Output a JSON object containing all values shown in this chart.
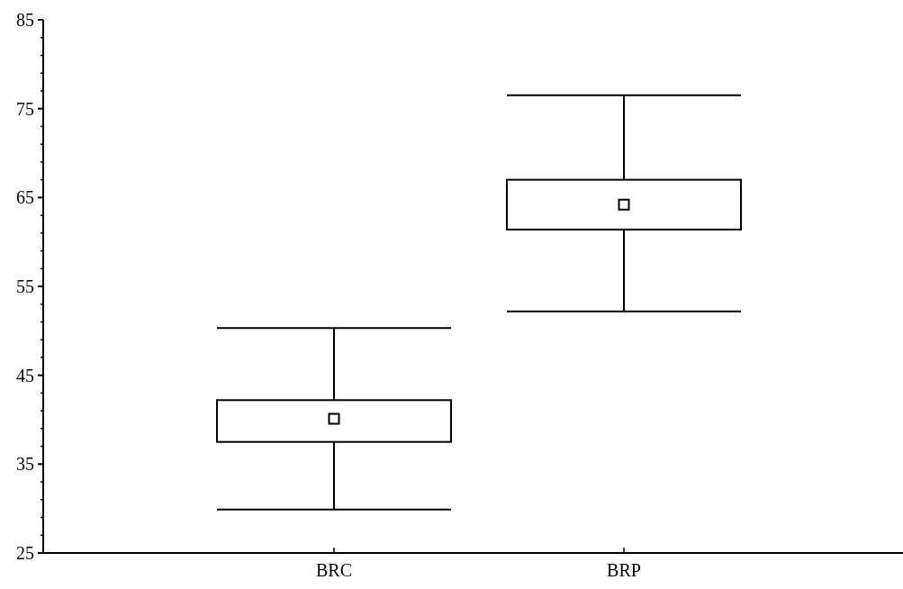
{
  "chart_data": {
    "type": "box",
    "categories": [
      "BRC",
      "BRP"
    ],
    "boxes": [
      {
        "low": 29.9,
        "q1": 37.5,
        "median": 40.1,
        "q3": 42.2,
        "high": 50.3
      },
      {
        "low": 52.2,
        "q1": 61.4,
        "median": 64.2,
        "q3": 67.0,
        "high": 76.5
      }
    ],
    "color": "#000000",
    "ylim": [
      25,
      85
    ],
    "yticks": [
      25,
      {
        "value": 27,
        "label": null
      },
      {
        "value": 29,
        "label": null
      },
      {
        "value": 31,
        "label": null
      },
      {
        "value": 33,
        "label": null
      },
      35,
      {
        "value": 37,
        "label": null
      },
      {
        "value": 39,
        "label": null
      },
      {
        "value": 41,
        "label": null
      },
      {
        "value": 43,
        "label": null
      },
      45,
      {
        "value": 47,
        "label": null
      },
      {
        "value": 49,
        "label": null
      },
      {
        "value": 51,
        "label": null
      },
      {
        "value": 53,
        "label": null
      },
      55,
      {
        "value": 57,
        "label": null
      },
      {
        "value": 59,
        "label": null
      },
      {
        "value": 61,
        "label": null
      },
      {
        "value": 63,
        "label": null
      },
      65,
      {
        "value": 67,
        "label": null
      },
      {
        "value": 69,
        "label": null
      },
      {
        "value": 71,
        "label": null
      },
      {
        "value": 73,
        "label": null
      },
      75,
      {
        "value": 77,
        "label": null
      },
      {
        "value": 79,
        "label": null
      },
      {
        "value": 81,
        "label": null
      },
      {
        "value": 83,
        "label": null
      },
      85
    ],
    "grid": false,
    "marker": "square"
  }
}
